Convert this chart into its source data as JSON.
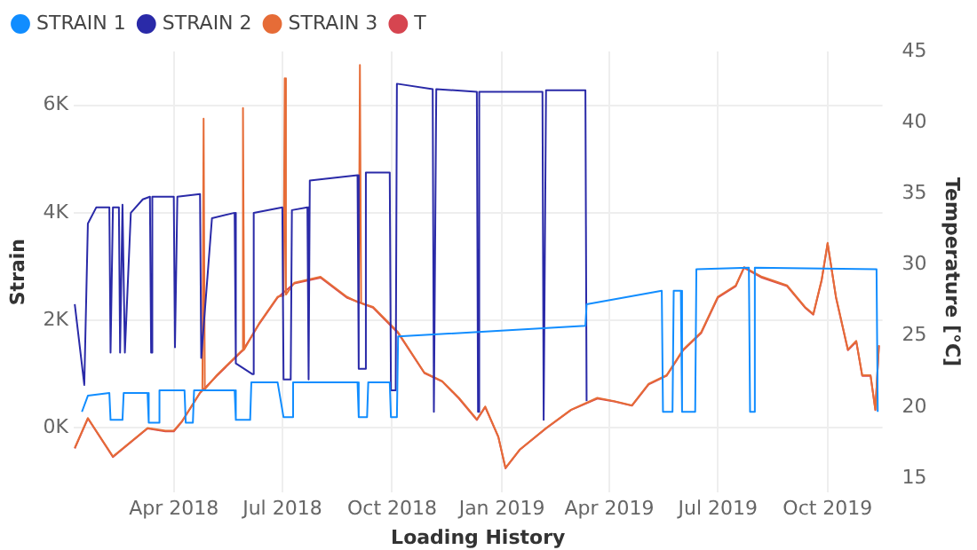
{
  "chart_data": {
    "type": "line",
    "xlabel": "Loading History",
    "ylabel": "Strain",
    "y2label": "Temperature [°C]",
    "legend": "top left",
    "grid": true,
    "marker": "none",
    "line_style": "solid",
    "xlim": [
      "2018-01-07",
      "2019-11-16"
    ],
    "xticks": [
      {
        "value": "2018-04-01",
        "label": "Apr 2018"
      },
      {
        "value": "2018-07-01",
        "label": "Jul 2018"
      },
      {
        "value": "2018-10-01",
        "label": "Oct 2018"
      },
      {
        "value": "2019-01-01",
        "label": "Jan 2019"
      },
      {
        "value": "2019-04-01",
        "label": "Apr 2019"
      },
      {
        "value": "2019-07-01",
        "label": "Jul 2019"
      },
      {
        "value": "2019-10-01",
        "label": "Oct 2019"
      }
    ],
    "ylim": [
      -1200,
      7000
    ],
    "yticks": [
      {
        "value": 0,
        "label": "0K"
      },
      {
        "value": 2000,
        "label": "2K"
      },
      {
        "value": 4000,
        "label": "4K"
      },
      {
        "value": 6000,
        "label": "6K"
      }
    ],
    "y2lim": [
      14,
      45
    ],
    "y2ticks": [
      15,
      20,
      25,
      30,
      35,
      40,
      45
    ],
    "series": [
      {
        "name": "STRAIN 1",
        "color": "#118dff",
        "x": [
          "2018-01-14",
          "2018-01-19",
          "2018-02-06",
          "2018-02-07",
          "2018-02-17",
          "2018-02-18",
          "2018-03-10",
          "2018-03-11",
          "2018-03-19",
          "2018-03-20",
          "2018-04-10",
          "2018-04-11",
          "2018-04-17",
          "2018-04-18",
          "2018-05-22",
          "2018-05-23",
          "2018-06-04",
          "2018-06-05",
          "2018-06-27",
          "2018-07-02",
          "2018-07-09",
          "2018-07-10",
          "2018-09-02",
          "2018-09-03",
          "2018-09-10",
          "2018-09-11",
          "2018-09-29",
          "2018-09-30",
          "2018-10-05",
          "2018-10-06",
          "2019-03-12",
          "2019-03-13",
          "2019-05-15",
          "2019-05-16",
          "2019-05-24",
          "2019-05-25",
          "2019-05-31",
          "2019-06-01",
          "2019-06-12",
          "2019-06-13",
          "2019-07-27",
          "2019-07-28",
          "2019-07-31",
          "2019-08-01",
          "2019-11-11",
          "2019-11-12",
          "2019-11-13"
        ],
        "values": [
          300,
          600,
          650,
          150,
          150,
          650,
          650,
          100,
          100,
          700,
          700,
          100,
          100,
          700,
          700,
          150,
          150,
          850,
          850,
          200,
          200,
          850,
          850,
          200,
          200,
          850,
          850,
          200,
          200,
          1700,
          1900,
          2300,
          2550,
          300,
          300,
          2550,
          2550,
          300,
          300,
          2950,
          2980,
          300,
          300,
          2980,
          2950,
          300,
          300
        ]
      },
      {
        "name": "STRAIN 2",
        "color": "#2a2aa8",
        "x": [
          "2018-01-08",
          "2018-01-16",
          "2018-01-19",
          "2018-01-26",
          "2018-02-06",
          "2018-02-07",
          "2018-02-09",
          "2018-02-14",
          "2018-02-15",
          "2018-02-17",
          "2018-02-19",
          "2018-02-24",
          "2018-03-06",
          "2018-03-12",
          "2018-03-13",
          "2018-03-14",
          "2018-04-01",
          "2018-04-02",
          "2018-04-04",
          "2018-04-23",
          "2018-04-24",
          "2018-05-03",
          "2018-05-22",
          "2018-05-23",
          "2018-06-06",
          "2018-06-07",
          "2018-07-01",
          "2018-07-02",
          "2018-07-08",
          "2018-07-09",
          "2018-07-22",
          "2018-07-23",
          "2018-07-24",
          "2018-09-02",
          "2018-09-03",
          "2018-09-08",
          "2018-09-09",
          "2018-09-29",
          "2018-09-30",
          "2018-10-04",
          "2018-10-05",
          "2018-11-04",
          "2018-11-05",
          "2018-11-07",
          "2018-12-11",
          "2018-12-12",
          "2018-12-13",
          "2019-02-04",
          "2019-02-05",
          "2019-02-07",
          "2019-03-12",
          "2019-03-13"
        ],
        "values": [
          2300,
          800,
          3800,
          4100,
          4100,
          1400,
          4100,
          4100,
          1400,
          4150,
          1400,
          4000,
          4250,
          4300,
          1400,
          4300,
          4300,
          1500,
          4300,
          4350,
          1300,
          3900,
          4000,
          1200,
          1000,
          4000,
          4100,
          900,
          900,
          4050,
          4100,
          900,
          4600,
          4700,
          1100,
          1100,
          4750,
          4750,
          700,
          700,
          6400,
          6300,
          300,
          6300,
          6250,
          300,
          6250,
          6250,
          150,
          6280,
          6280,
          500
        ]
      },
      {
        "name": "STRAIN 3",
        "color": "#e66c37",
        "x": [
          "2018-01-08",
          "2018-01-19",
          "2018-02-09",
          "2018-03-10",
          "2018-03-25",
          "2018-04-01",
          "2018-04-08",
          "2018-04-23",
          "2018-04-25",
          "2018-04-26",
          "2018-04-27",
          "2018-05-07",
          "2018-05-28",
          "2018-05-29",
          "2018-05-30",
          "2018-06-12",
          "2018-06-27",
          "2018-07-02",
          "2018-07-03",
          "2018-07-04",
          "2018-07-11",
          "2018-08-02",
          "2018-08-24",
          "2018-09-03",
          "2018-09-04",
          "2018-09-05",
          "2018-09-15",
          "2018-10-06",
          "2018-10-28",
          "2018-11-12",
          "2018-11-26",
          "2018-12-11",
          "2018-12-18",
          "2018-12-29",
          "2019-01-04",
          "2019-01-16",
          "2019-02-07",
          "2019-02-28",
          "2019-03-22",
          "2019-04-05",
          "2019-04-20",
          "2019-05-04",
          "2019-05-19",
          "2019-06-02",
          "2019-06-17",
          "2019-07-01",
          "2019-07-16",
          "2019-07-23",
          "2019-08-07",
          "2019-08-28",
          "2019-09-12",
          "2019-09-19",
          "2019-09-26",
          "2019-10-01",
          "2019-10-08",
          "2019-10-18",
          "2019-10-25",
          "2019-10-30",
          "2019-11-06",
          "2019-11-10",
          "2019-11-13"
        ],
        "values": [
          -370,
          185,
          -530,
          0,
          -50,
          -50,
          130,
          660,
          700,
          5750,
          720,
          980,
          1440,
          5950,
          1460,
          1960,
          2440,
          2460,
          6500,
          2480,
          2700,
          2810,
          2440,
          2330,
          6750,
          2320,
          2250,
          1780,
          1030,
          870,
          560,
          160,
          400,
          -160,
          -740,
          -400,
          0,
          340,
          560,
          500,
          420,
          820,
          980,
          1460,
          1780,
          2440,
          2650,
          2990,
          2810,
          2650,
          2250,
          2120,
          2760,
          3440,
          2440,
          1460,
          1620,
          980,
          980,
          340,
          1540
        ]
      },
      {
        "name": "T",
        "color": "#d64550",
        "axis": "y2",
        "x": [
          "2018-01-08",
          "2018-01-19",
          "2018-02-09",
          "2018-03-10",
          "2018-03-25",
          "2018-04-01",
          "2018-04-08",
          "2018-04-23",
          "2018-05-07",
          "2018-05-29",
          "2018-06-12",
          "2018-06-27",
          "2018-07-11",
          "2018-08-02",
          "2018-08-24",
          "2018-09-15",
          "2018-10-06",
          "2018-10-28",
          "2018-11-12",
          "2018-11-26",
          "2018-12-11",
          "2018-12-18",
          "2018-12-29",
          "2019-01-04",
          "2019-01-16",
          "2019-02-07",
          "2019-02-28",
          "2019-03-22",
          "2019-04-05",
          "2019-04-20",
          "2019-05-04",
          "2019-05-19",
          "2019-06-02",
          "2019-06-17",
          "2019-07-01",
          "2019-07-16",
          "2019-07-23",
          "2019-08-07",
          "2019-08-28",
          "2019-09-12",
          "2019-09-19",
          "2019-09-26",
          "2019-10-01",
          "2019-10-08",
          "2019-10-18",
          "2019-10-25",
          "2019-10-30",
          "2019-11-06",
          "2019-11-10",
          "2019-11-13"
        ],
        "values": [
          17.1,
          19.2,
          16.5,
          18.5,
          18.3,
          18.3,
          19,
          21,
          22.2,
          24,
          25.9,
          27.7,
          28.7,
          29.1,
          27.7,
          27,
          25.2,
          22.4,
          21.8,
          20.6,
          19.1,
          20,
          17.9,
          15.7,
          17,
          18.5,
          19.8,
          20.6,
          20.4,
          20.1,
          21.6,
          22.2,
          24,
          25.2,
          27.7,
          28.5,
          29.8,
          29.1,
          28.5,
          27,
          26.5,
          28.9,
          31.5,
          27.7,
          24,
          24.6,
          22.2,
          22.2,
          19.8,
          24.3
        ]
      }
    ]
  }
}
